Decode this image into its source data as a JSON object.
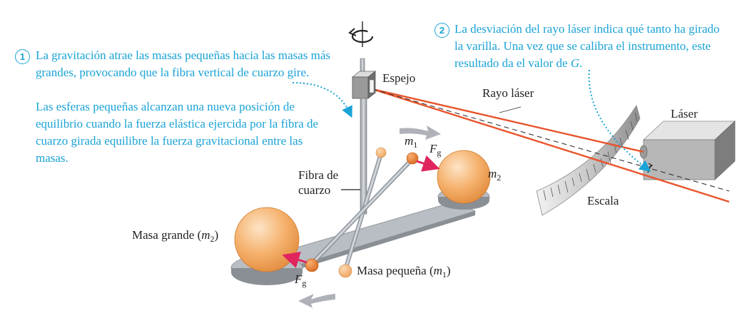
{
  "colors": {
    "annotation": "#1aa3d6",
    "laser_beam": "#e8542a",
    "sphere": "#f5b06b",
    "force_arrow": "#e0245e",
    "metal": "#b9bec4"
  },
  "callout_1": {
    "number": "1",
    "text": "La gravitación atrae las masas pequeñas hacia las masas más grandes, provocando que la fibra vertical de cuarzo gire.",
    "text2": "Las esferas pequeñas alcanzan una nueva posición de equilibrio cuando la fuerza elástica ejercida por la fibra de cuarzo girada equilibre la fuerza gravitacional entre las masas."
  },
  "callout_2": {
    "number": "2",
    "text": "La desviación del rayo láser indica qué tanto ha girado la varilla. Una vez que se calibra el instrumento, este resultado da el valor de",
    "symbol": "G",
    "end": "."
  },
  "labels": {
    "mirror": "Espejo",
    "laser_ray": "Rayo láser",
    "laser": "Láser",
    "scale": "Escala",
    "fiber_line1": "Fibra de",
    "fiber_line2": "cuarzo",
    "large_mass_prefix": "Masa grande (",
    "large_mass_symbol": "m",
    "large_mass_sub": "2",
    "large_mass_suffix": ")",
    "small_mass_prefix": "Masa pequeña (",
    "small_mass_symbol": "m",
    "small_mass_sub": "1",
    "small_mass_suffix": ")",
    "m1_symbol": "m",
    "m1_sub": "1",
    "m2_symbol": "m",
    "m2_sub": "2",
    "force_symbol": "F",
    "force_sub": "g"
  }
}
